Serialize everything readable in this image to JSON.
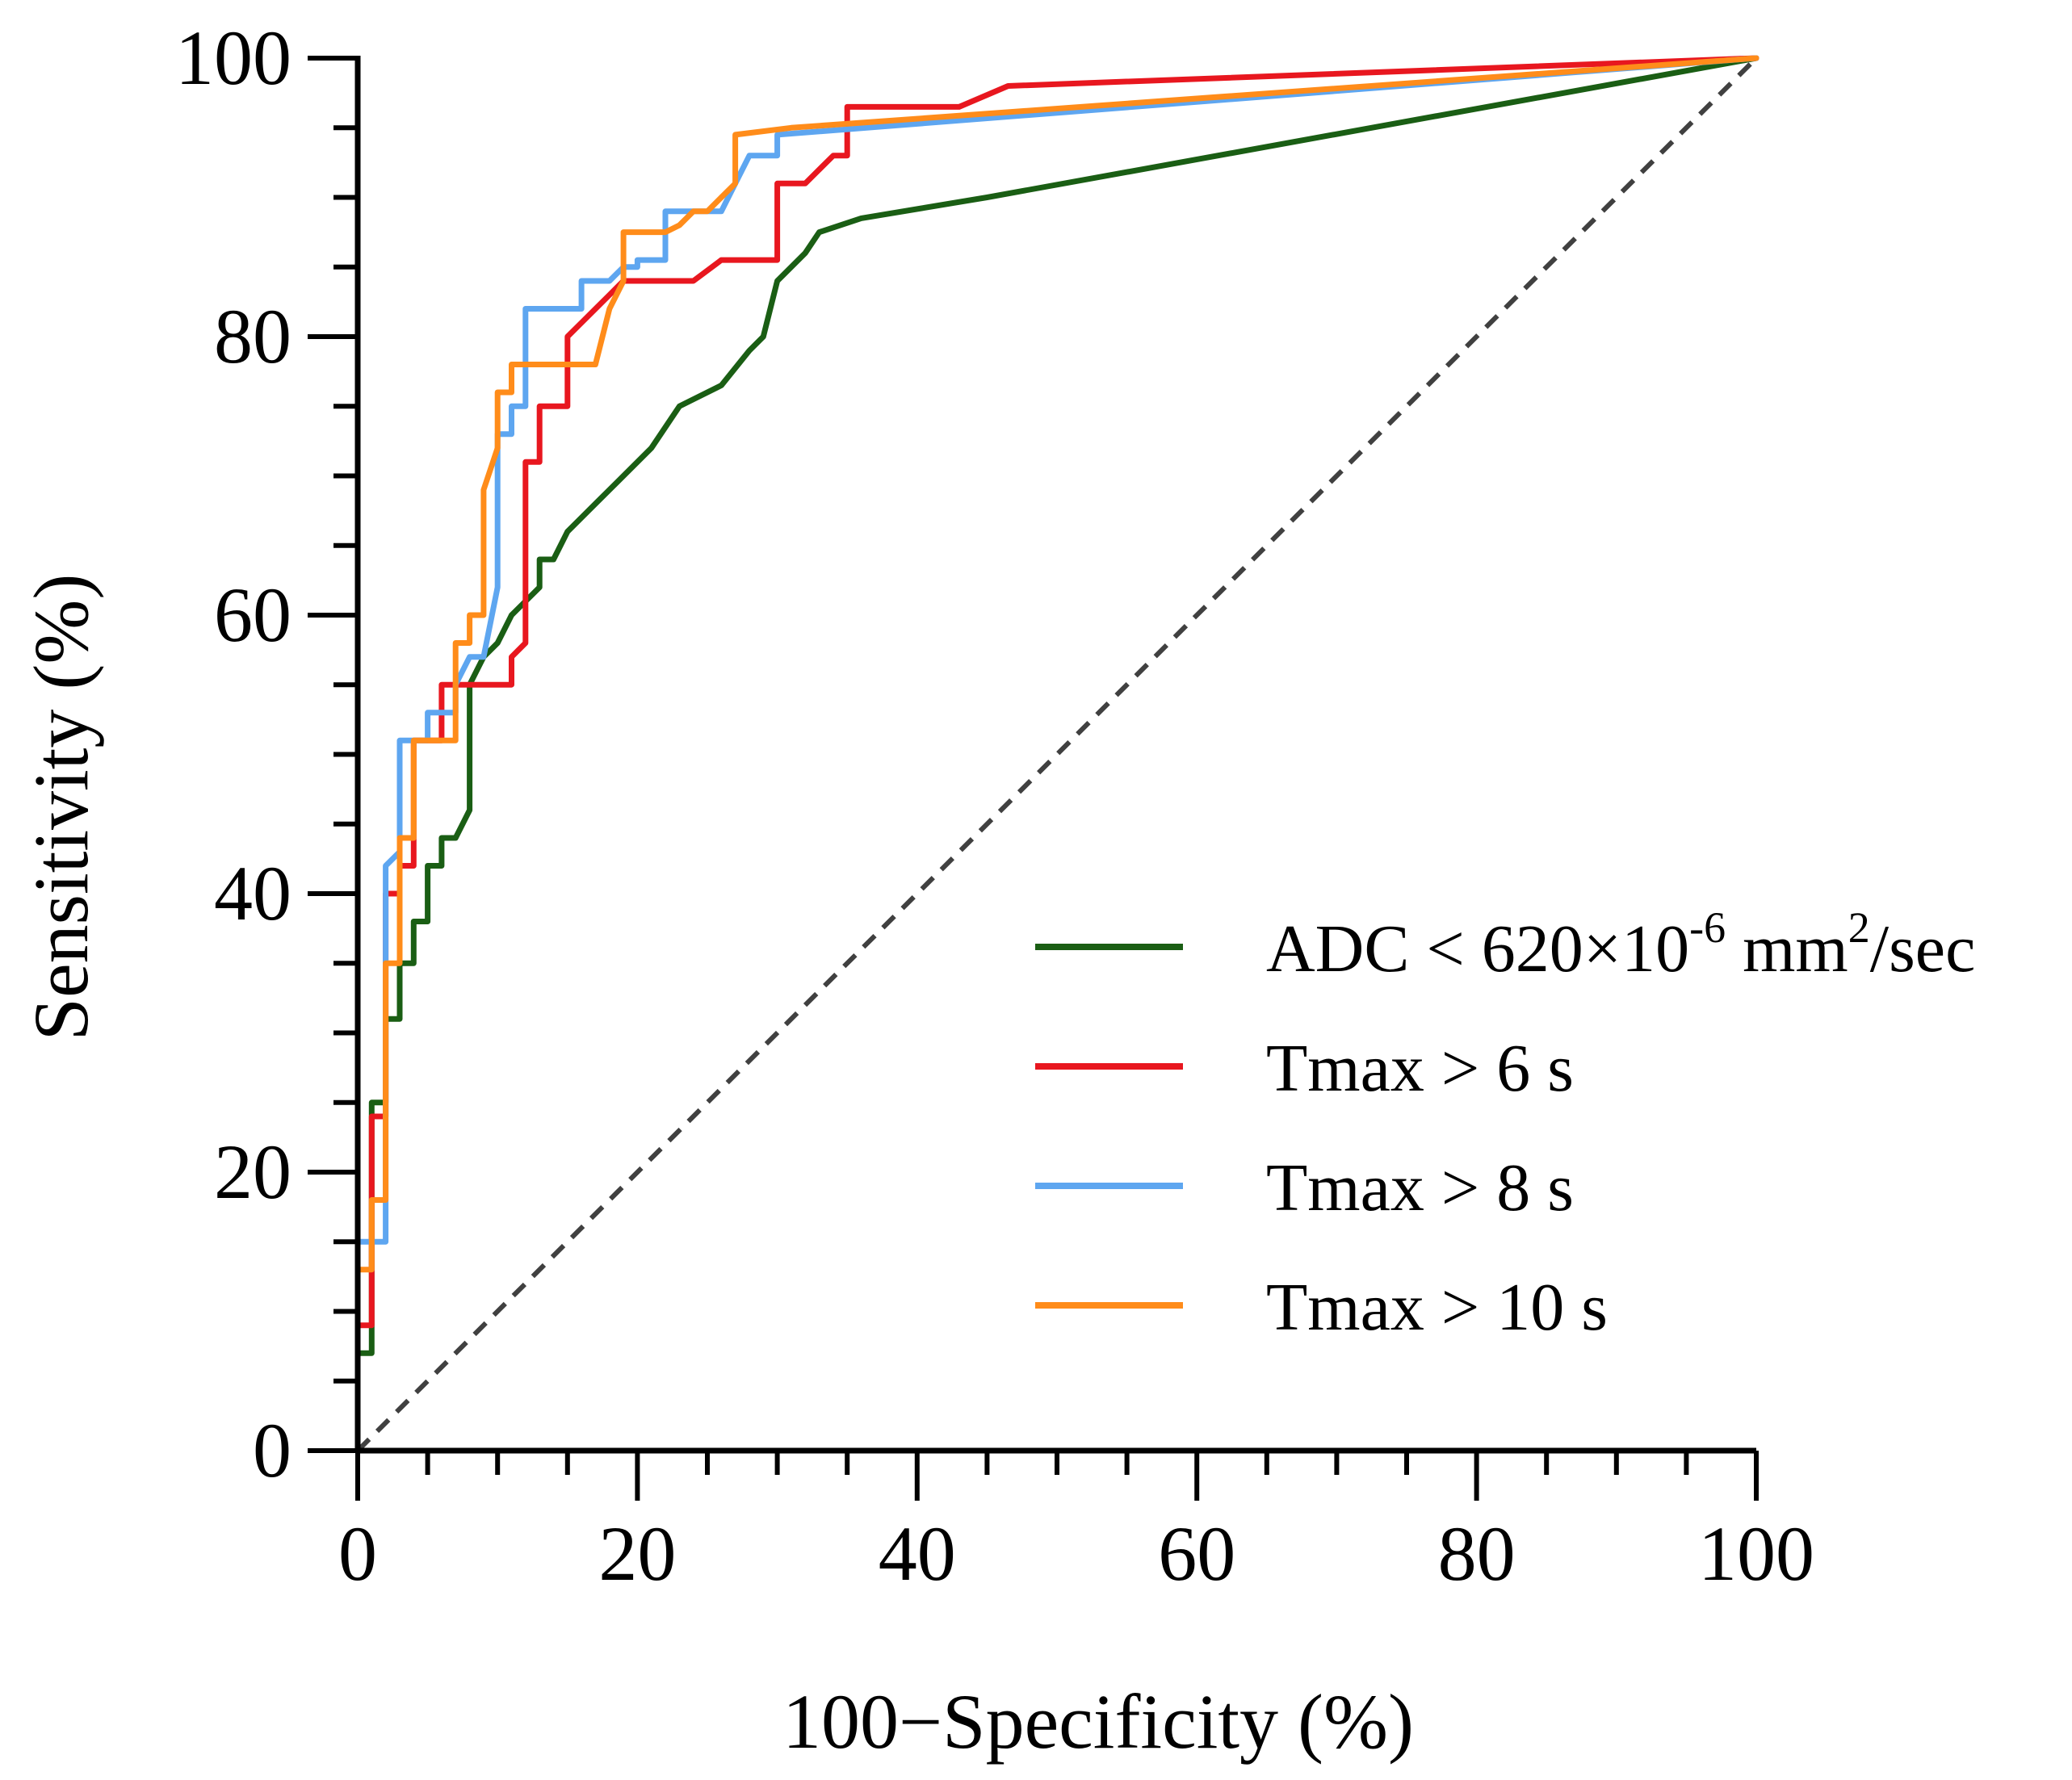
{
  "chart_data": {
    "type": "line",
    "xlabel": "100−Specificity (%)",
    "ylabel": "Sensitivity (%)",
    "xlim": [
      0,
      100
    ],
    "ylim": [
      0,
      100
    ],
    "x_ticks": [
      "0",
      "20",
      "40",
      "60",
      "80",
      "100"
    ],
    "y_ticks": [
      "0",
      "20",
      "40",
      "60",
      "80",
      "100"
    ],
    "grid": false,
    "legend_position": "bottom-right",
    "reference_line": {
      "style": "dashed",
      "color": "#404040",
      "points": [
        [
          0,
          0
        ],
        [
          100,
          100
        ]
      ]
    },
    "series": [
      {
        "name": "ADC < 620×10-6 mm2/sec",
        "legend_parts": {
          "base": "ADC < 620×10",
          "exp1": "-6",
          "mid": " mm",
          "exp2": "2",
          "tail": "/sec"
        },
        "color": "#1a5e14",
        "points": [
          [
            0,
            0
          ],
          [
            0,
            7
          ],
          [
            1,
            7
          ],
          [
            1,
            25
          ],
          [
            2,
            25
          ],
          [
            2,
            31
          ],
          [
            3,
            31
          ],
          [
            3,
            35
          ],
          [
            4,
            35
          ],
          [
            4,
            38
          ],
          [
            5,
            38
          ],
          [
            5,
            42
          ],
          [
            6,
            42
          ],
          [
            6,
            44
          ],
          [
            7,
            44
          ],
          [
            8,
            46
          ],
          [
            8,
            55
          ],
          [
            9,
            57
          ],
          [
            10,
            58
          ],
          [
            11,
            60
          ],
          [
            12,
            61
          ],
          [
            13,
            62
          ],
          [
            13,
            64
          ],
          [
            14,
            64
          ],
          [
            15,
            66
          ],
          [
            17,
            68
          ],
          [
            19,
            70
          ],
          [
            21,
            72
          ],
          [
            23,
            75
          ],
          [
            24,
            75.5
          ],
          [
            26,
            76.5
          ],
          [
            28,
            79
          ],
          [
            29,
            80
          ],
          [
            30,
            84
          ],
          [
            32,
            86
          ],
          [
            33,
            87.5
          ],
          [
            36,
            88.5
          ],
          [
            45,
            90
          ],
          [
            100,
            100
          ]
        ]
      },
      {
        "name": "Tmax > 6 s",
        "color": "#e8171f",
        "points": [
          [
            0,
            0
          ],
          [
            0,
            9
          ],
          [
            1,
            9
          ],
          [
            1,
            24
          ],
          [
            2,
            24
          ],
          [
            2,
            40
          ],
          [
            3,
            40
          ],
          [
            3,
            42
          ],
          [
            4,
            42
          ],
          [
            4,
            51
          ],
          [
            5,
            51
          ],
          [
            6,
            51
          ],
          [
            6,
            55
          ],
          [
            7,
            55
          ],
          [
            8,
            55
          ],
          [
            11,
            55
          ],
          [
            11,
            57
          ],
          [
            12,
            58
          ],
          [
            12,
            71
          ],
          [
            13,
            71
          ],
          [
            13,
            75
          ],
          [
            15,
            75
          ],
          [
            15,
            80
          ],
          [
            16,
            81
          ],
          [
            18,
            83
          ],
          [
            19,
            84
          ],
          [
            24,
            84
          ],
          [
            26,
            85.5
          ],
          [
            29,
            85.5
          ],
          [
            30,
            85.5
          ],
          [
            30,
            91
          ],
          [
            32,
            91
          ],
          [
            34,
            93
          ],
          [
            35,
            93
          ],
          [
            35,
            96.5
          ],
          [
            43,
            96.5
          ],
          [
            46.5,
            98
          ],
          [
            100,
            100
          ]
        ]
      },
      {
        "name": "Tmax > 8 s",
        "color": "#5ea6f0",
        "points": [
          [
            0,
            0
          ],
          [
            0,
            15
          ],
          [
            2,
            15
          ],
          [
            2,
            42
          ],
          [
            3,
            43
          ],
          [
            3,
            51
          ],
          [
            4,
            51
          ],
          [
            5,
            51
          ],
          [
            5,
            53
          ],
          [
            7,
            53
          ],
          [
            7,
            55
          ],
          [
            8,
            57
          ],
          [
            9,
            57
          ],
          [
            10,
            62
          ],
          [
            10,
            73
          ],
          [
            11,
            73
          ],
          [
            11,
            75
          ],
          [
            12,
            75
          ],
          [
            12,
            82
          ],
          [
            16,
            82
          ],
          [
            16,
            84
          ],
          [
            17,
            84
          ],
          [
            18,
            84
          ],
          [
            18,
            84
          ],
          [
            19,
            85
          ],
          [
            20,
            85
          ],
          [
            20,
            85.5
          ],
          [
            22,
            85.5
          ],
          [
            22,
            89
          ],
          [
            26,
            89
          ],
          [
            27,
            91
          ],
          [
            28,
            93
          ],
          [
            30,
            93
          ],
          [
            30,
            94.5
          ],
          [
            100,
            100
          ]
        ]
      },
      {
        "name": "Tmax > 10 s",
        "color": "#ff8c1a",
        "points": [
          [
            0,
            0
          ],
          [
            0,
            13
          ],
          [
            1,
            13
          ],
          [
            1,
            18
          ],
          [
            2,
            18
          ],
          [
            2,
            35
          ],
          [
            3,
            35
          ],
          [
            3,
            44
          ],
          [
            4,
            44
          ],
          [
            4,
            51
          ],
          [
            5,
            51
          ],
          [
            7,
            51
          ],
          [
            7,
            58
          ],
          [
            8,
            58
          ],
          [
            8,
            60
          ],
          [
            9,
            60
          ],
          [
            9,
            69
          ],
          [
            10,
            72
          ],
          [
            10,
            76
          ],
          [
            11,
            76
          ],
          [
            11,
            78
          ],
          [
            17,
            78
          ],
          [
            18,
            82
          ],
          [
            19,
            84
          ],
          [
            19,
            87.5
          ],
          [
            22,
            87.5
          ],
          [
            23,
            88
          ],
          [
            24,
            89
          ],
          [
            25,
            89
          ],
          [
            26,
            90
          ],
          [
            27,
            91
          ],
          [
            27,
            94.5
          ],
          [
            31,
            95
          ],
          [
            100,
            100
          ]
        ]
      }
    ]
  }
}
